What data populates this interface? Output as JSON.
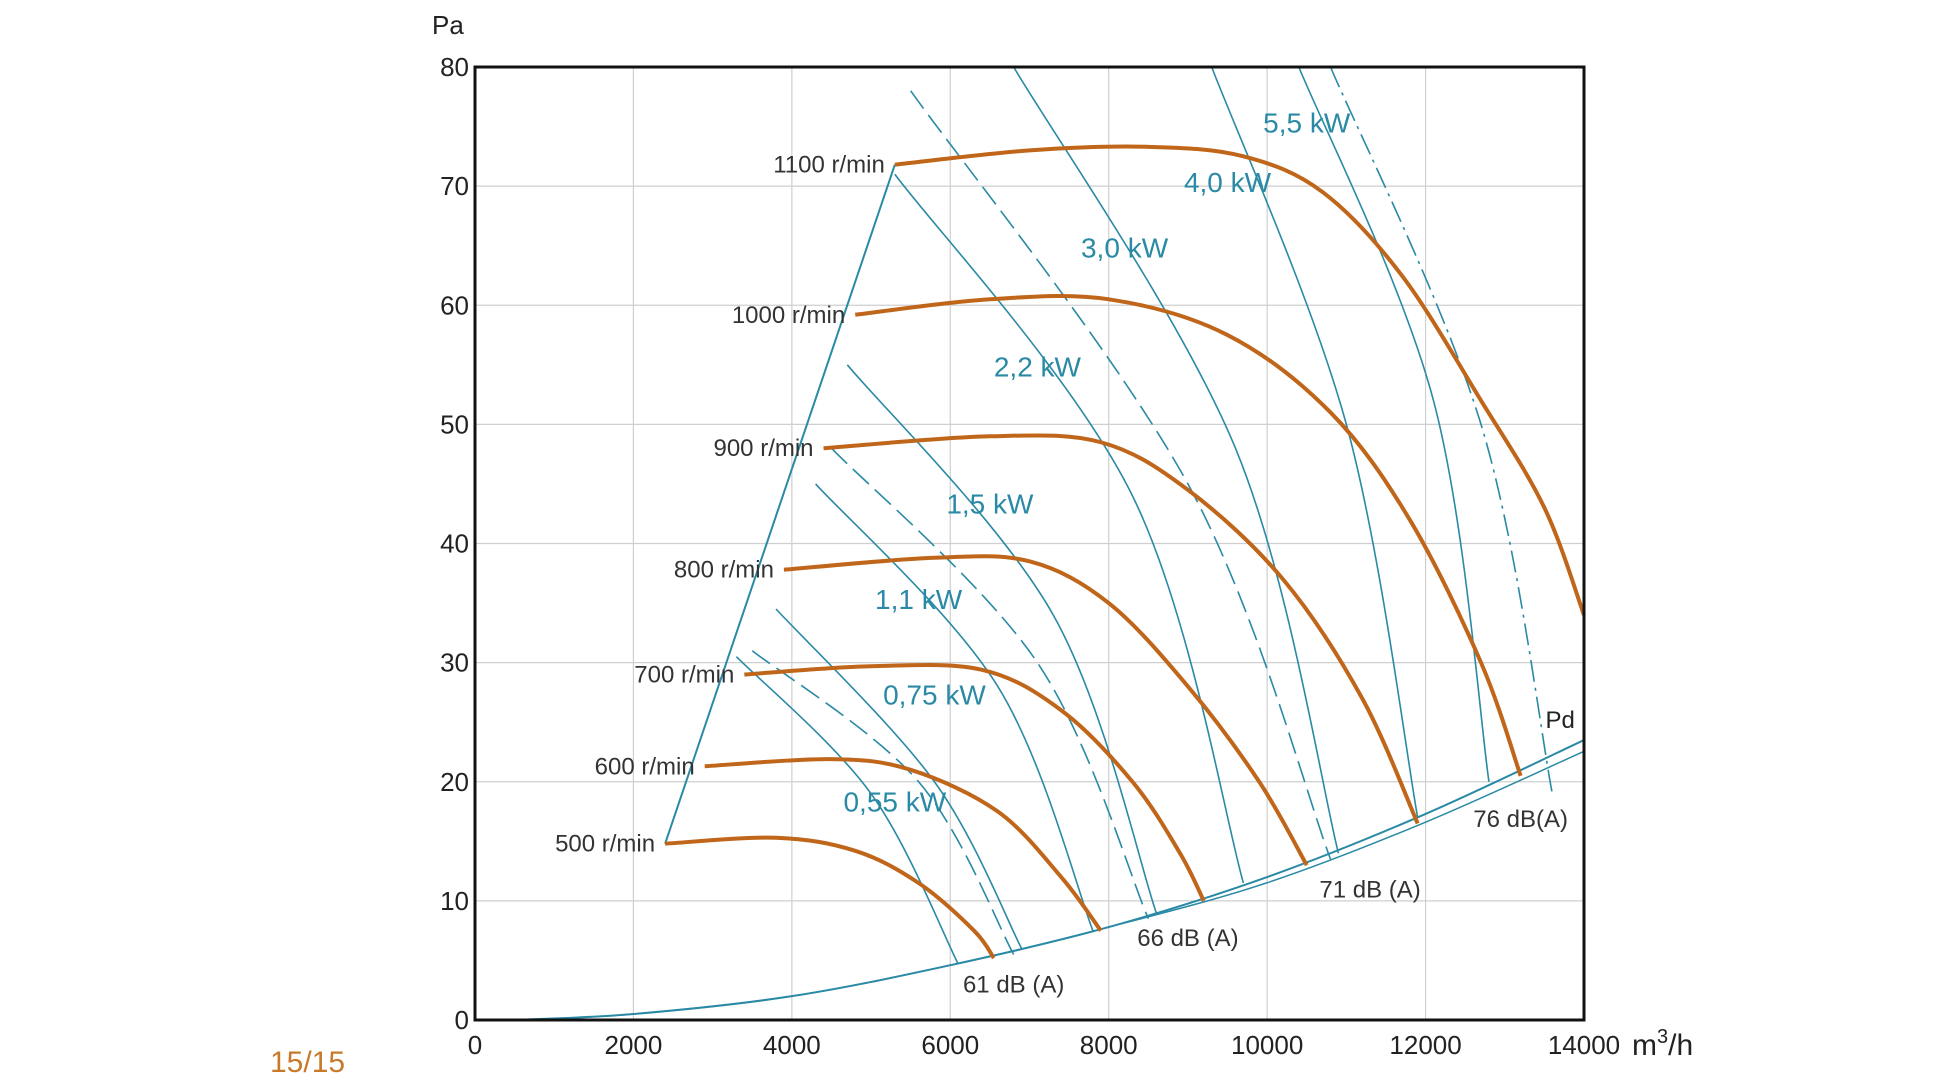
{
  "page_number": "15/15",
  "chart_data": {
    "type": "line",
    "title": "",
    "xlabel": "m³/h",
    "ylabel": "Pa",
    "xlim": [
      0,
      14000
    ],
    "ylim": [
      0,
      80
    ],
    "x_ticks": [
      "0",
      "2000",
      "4000",
      "6000",
      "8000",
      "10000",
      "12000",
      "14000"
    ],
    "y_ticks": [
      "0",
      "10",
      "20",
      "30",
      "40",
      "50",
      "60",
      "70",
      "80"
    ],
    "grid": true,
    "colors": {
      "speed": "#c0661a",
      "power": "#2a8aa5",
      "text": "#333333",
      "page_number": "#c87a2a"
    },
    "speed_curves": [
      {
        "name": "500 r/min",
        "points": [
          [
            2400,
            14.8
          ],
          [
            3800,
            15.3
          ],
          [
            4800,
            14.2
          ],
          [
            5600,
            11.5
          ],
          [
            6300,
            7.5
          ],
          [
            6550,
            5.2
          ]
        ]
      },
      {
        "name": "600 r/min",
        "points": [
          [
            2900,
            21.3
          ],
          [
            4500,
            21.9
          ],
          [
            5500,
            21
          ],
          [
            6600,
            17.5
          ],
          [
            7400,
            12
          ],
          [
            7900,
            7.5
          ]
        ]
      },
      {
        "name": "700 r/min",
        "points": [
          [
            3400,
            29
          ],
          [
            5000,
            29.7
          ],
          [
            6400,
            29.4
          ],
          [
            7400,
            26
          ],
          [
            8300,
            20
          ],
          [
            8900,
            14
          ],
          [
            9200,
            10
          ]
        ]
      },
      {
        "name": "800 r/min",
        "points": [
          [
            3900,
            37.8
          ],
          [
            5800,
            38.8
          ],
          [
            7000,
            38.5
          ],
          [
            8000,
            35
          ],
          [
            9000,
            28
          ],
          [
            9900,
            20
          ],
          [
            10500,
            13
          ]
        ]
      },
      {
        "name": "900 r/min",
        "points": [
          [
            4400,
            48
          ],
          [
            6500,
            49
          ],
          [
            7900,
            48.5
          ],
          [
            9000,
            44.5
          ],
          [
            10200,
            37
          ],
          [
            11200,
            27
          ],
          [
            11900,
            16.5
          ]
        ]
      },
      {
        "name": "1000 r/min",
        "points": [
          [
            4800,
            59.2
          ],
          [
            6500,
            60.5
          ],
          [
            8000,
            60.5
          ],
          [
            9500,
            57.5
          ],
          [
            10800,
            51
          ],
          [
            11800,
            42
          ],
          [
            12700,
            30
          ],
          [
            13200,
            20.5
          ]
        ]
      },
      {
        "name": "1100 r/min",
        "points": [
          [
            5300,
            71.8
          ],
          [
            7000,
            73
          ],
          [
            8500,
            73.3
          ],
          [
            9700,
            72.5
          ],
          [
            10700,
            69.5
          ],
          [
            11700,
            62.5
          ],
          [
            12700,
            52
          ],
          [
            13500,
            43
          ],
          [
            14000,
            34
          ]
        ]
      }
    ],
    "boundary_line": [
      [
        2400,
        14.8
      ],
      [
        5300,
        71.8
      ]
    ],
    "power_curves": [
      {
        "name": "0,55 kW",
        "points": [
          [
            3300,
            30.5
          ],
          [
            5000,
            19
          ],
          [
            6100,
            4.7
          ]
        ]
      },
      {
        "name": "0,75 kW",
        "points": [
          [
            3800,
            34.5
          ],
          [
            5800,
            20
          ],
          [
            6900,
            6
          ]
        ]
      },
      {
        "name": "1,1 kW",
        "points": [
          [
            4300,
            45
          ],
          [
            6600,
            28
          ],
          [
            7800,
            7.5
          ]
        ]
      },
      {
        "name": "1,5 kW",
        "points": [
          [
            4700,
            55
          ],
          [
            7300,
            34
          ],
          [
            8600,
            9
          ]
        ]
      },
      {
        "name": "2,2 kW",
        "points": [
          [
            5300,
            71
          ],
          [
            8300,
            44
          ],
          [
            9700,
            11.5
          ]
        ]
      },
      {
        "name": "3,0 kW",
        "points": [
          [
            6800,
            80
          ],
          [
            9600,
            48
          ],
          [
            10900,
            14
          ]
        ]
      },
      {
        "name": "4,0 kW",
        "points": [
          [
            9300,
            80
          ],
          [
            11000,
            50
          ],
          [
            11900,
            17
          ]
        ]
      },
      {
        "name": "5,5 kW",
        "points": [
          [
            10400,
            80
          ],
          [
            12100,
            52
          ],
          [
            12800,
            20
          ]
        ]
      }
    ],
    "noise_curves": [
      {
        "name": "61 dB (A)",
        "points": [
          [
            3500,
            31
          ],
          [
            5600,
            20
          ],
          [
            6800,
            5.5
          ]
        ]
      },
      {
        "name": "66 dB (A)",
        "points": [
          [
            4500,
            48
          ],
          [
            7100,
            30
          ],
          [
            8500,
            8.5
          ]
        ]
      },
      {
        "name": "71 dB (A)",
        "points": [
          [
            5500,
            78
          ],
          [
            9000,
            45
          ],
          [
            10800,
            13.5
          ]
        ]
      },
      {
        "name": "76 dB(A)",
        "points": [
          [
            10800,
            80
          ],
          [
            12700,
            50
          ],
          [
            13600,
            19
          ]
        ]
      }
    ],
    "system_curve": {
      "name": "Pd",
      "points": [
        [
          500,
          0
        ],
        [
          2000,
          0.5
        ],
        [
          4000,
          2
        ],
        [
          6000,
          4.6
        ],
        [
          8000,
          7.8
        ],
        [
          10000,
          12
        ],
        [
          12000,
          17.3
        ],
        [
          14000,
          23.5
        ]
      ]
    }
  }
}
